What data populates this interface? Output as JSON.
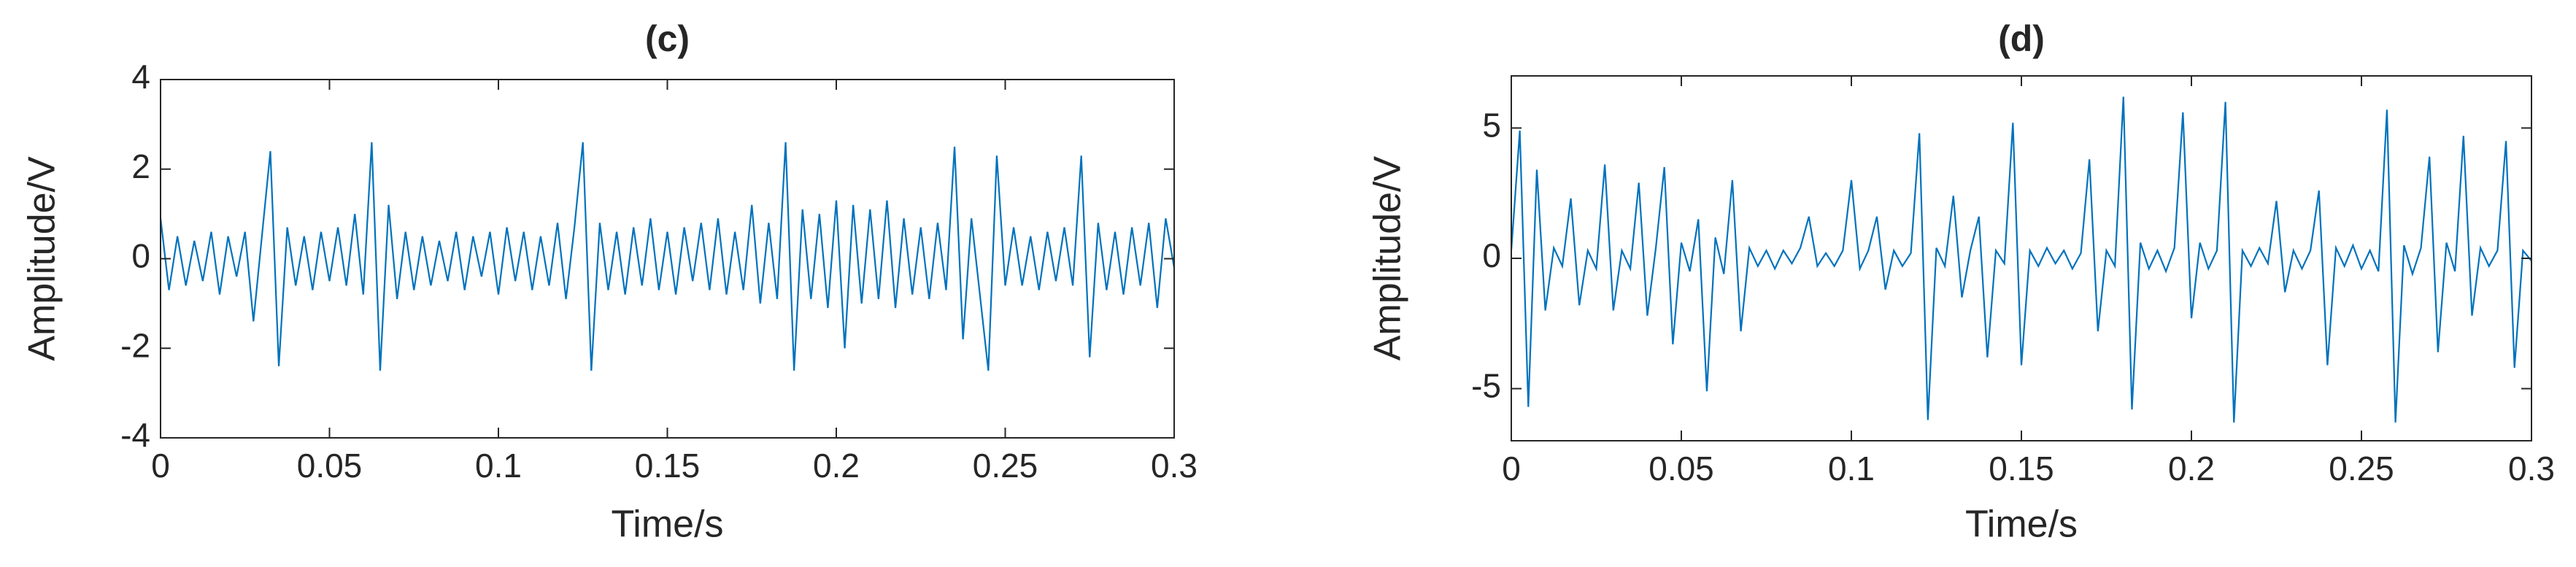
{
  "chart_data": [
    {
      "type": "line",
      "title": "(c)",
      "xlabel": "Time/s",
      "ylabel": "Amplitude/V",
      "color": "#0072bd",
      "xlim": [
        0,
        0.3
      ],
      "ylim": [
        -4,
        4
      ],
      "xticks": [
        0,
        0.05,
        0.1,
        0.15,
        0.2,
        0.25,
        0.3
      ],
      "yticks": [
        -4,
        -2,
        0,
        2,
        4
      ],
      "x": [
        0,
        0.0025,
        0.005,
        0.0075,
        0.01,
        0.0125,
        0.015,
        0.0175,
        0.02,
        0.0225,
        0.025,
        0.0275,
        0.03,
        0.0325,
        0.035,
        0.0375,
        0.04,
        0.0425,
        0.045,
        0.0475,
        0.05,
        0.0525,
        0.055,
        0.0575,
        0.06,
        0.0625,
        0.065,
        0.0675,
        0.07,
        0.0725,
        0.075,
        0.0775,
        0.08,
        0.0825,
        0.085,
        0.0875,
        0.09,
        0.0925,
        0.095,
        0.0975,
        0.1,
        0.1025,
        0.105,
        0.1075,
        0.11,
        0.1125,
        0.115,
        0.1175,
        0.12,
        0.1225,
        0.125,
        0.1275,
        0.13,
        0.1325,
        0.135,
        0.1375,
        0.14,
        0.1425,
        0.145,
        0.1475,
        0.15,
        0.1525,
        0.155,
        0.1575,
        0.16,
        0.1625,
        0.165,
        0.1675,
        0.17,
        0.1725,
        0.175,
        0.1775,
        0.18,
        0.1825,
        0.185,
        0.1875,
        0.19,
        0.1925,
        0.195,
        0.1975,
        0.2,
        0.2025,
        0.205,
        0.2075,
        0.21,
        0.2125,
        0.215,
        0.2175,
        0.22,
        0.2225,
        0.225,
        0.2275,
        0.23,
        0.2325,
        0.235,
        0.2375,
        0.24,
        0.2425,
        0.245,
        0.2475,
        0.25,
        0.2525,
        0.255,
        0.2575,
        0.26,
        0.2625,
        0.265,
        0.2675,
        0.27,
        0.2725,
        0.275,
        0.2775,
        0.28,
        0.2825,
        0.285,
        0.2875,
        0.29,
        0.2925,
        0.295,
        0.2975,
        0.3
      ],
      "values": [
        0.9,
        -0.7,
        0.5,
        -0.6,
        0.4,
        -0.5,
        0.6,
        -0.8,
        0.5,
        -0.4,
        0.6,
        -1.4,
        0.5,
        2.4,
        -2.4,
        0.7,
        -0.6,
        0.5,
        -0.7,
        0.6,
        -0.5,
        0.7,
        -0.6,
        1.0,
        -0.8,
        2.6,
        -2.5,
        1.2,
        -0.9,
        0.6,
        -0.7,
        0.5,
        -0.6,
        0.4,
        -0.5,
        0.6,
        -0.7,
        0.5,
        -0.4,
        0.6,
        -0.8,
        0.7,
        -0.5,
        0.6,
        -0.7,
        0.5,
        -0.6,
        0.8,
        -0.9,
        0.7,
        2.6,
        -2.5,
        0.8,
        -0.7,
        0.6,
        -0.8,
        0.7,
        -0.6,
        0.9,
        -0.7,
        0.6,
        -0.8,
        0.7,
        -0.5,
        0.8,
        -0.7,
        0.9,
        -0.8,
        0.6,
        -0.7,
        1.2,
        -1.0,
        0.8,
        -0.9,
        2.6,
        -2.5,
        1.1,
        -0.9,
        1.0,
        -1.1,
        1.3,
        -2.0,
        1.2,
        -1.0,
        1.1,
        -0.9,
        1.3,
        -1.1,
        0.9,
        -0.8,
        0.7,
        -0.9,
        0.8,
        -0.7,
        2.5,
        -1.8,
        0.9,
        -0.8,
        -2.5,
        2.3,
        -0.6,
        0.7,
        -0.6,
        0.5,
        -0.7,
        0.6,
        -0.5,
        0.7,
        -0.6,
        2.3,
        -2.2,
        0.8,
        -0.7,
        0.6,
        -0.8,
        0.7,
        -0.6,
        0.8,
        -1.1,
        0.9,
        -0.2
      ]
    },
    {
      "type": "line",
      "title": "(d)",
      "xlabel": "Time/s",
      "ylabel": "Amplitude/V",
      "color": "#0072bd",
      "xlim": [
        0,
        0.3
      ],
      "ylim": [
        -7,
        7
      ],
      "xticks": [
        0,
        0.05,
        0.1,
        0.15,
        0.2,
        0.25,
        0.3
      ],
      "yticks": [
        -5,
        0,
        5
      ],
      "x": [
        0,
        0.0025,
        0.005,
        0.0075,
        0.01,
        0.0125,
        0.015,
        0.0175,
        0.02,
        0.0225,
        0.025,
        0.0275,
        0.03,
        0.0325,
        0.035,
        0.0375,
        0.04,
        0.0425,
        0.045,
        0.0475,
        0.05,
        0.0525,
        0.055,
        0.0575,
        0.06,
        0.0625,
        0.065,
        0.0675,
        0.07,
        0.0725,
        0.075,
        0.0775,
        0.08,
        0.0825,
        0.085,
        0.0875,
        0.09,
        0.0925,
        0.095,
        0.0975,
        0.1,
        0.1025,
        0.105,
        0.1075,
        0.11,
        0.1125,
        0.115,
        0.1175,
        0.12,
        0.1225,
        0.125,
        0.1275,
        0.13,
        0.1325,
        0.135,
        0.1375,
        0.14,
        0.1425,
        0.145,
        0.1475,
        0.15,
        0.1525,
        0.155,
        0.1575,
        0.16,
        0.1625,
        0.165,
        0.1675,
        0.17,
        0.1725,
        0.175,
        0.1775,
        0.18,
        0.1825,
        0.185,
        0.1875,
        0.19,
        0.1925,
        0.195,
        0.1975,
        0.2,
        0.2025,
        0.205,
        0.2075,
        0.21,
        0.2125,
        0.215,
        0.2175,
        0.22,
        0.2225,
        0.225,
        0.2275,
        0.23,
        0.2325,
        0.235,
        0.2375,
        0.24,
        0.2425,
        0.245,
        0.2475,
        0.25,
        0.2525,
        0.255,
        0.2575,
        0.26,
        0.2625,
        0.265,
        0.2675,
        0.27,
        0.2725,
        0.275,
        0.2775,
        0.28,
        0.2825,
        0.285,
        0.2875,
        0.29,
        0.2925,
        0.295,
        0.2975,
        0.3
      ],
      "values": [
        0.3,
        4.9,
        -5.7,
        3.4,
        -2.0,
        0.4,
        -0.3,
        2.3,
        -1.8,
        0.3,
        -0.4,
        3.6,
        -2.0,
        0.3,
        -0.4,
        2.9,
        -2.2,
        0.4,
        3.5,
        -3.3,
        0.6,
        -0.5,
        1.5,
        -5.1,
        0.8,
        -0.6,
        3.0,
        -2.8,
        0.4,
        -0.3,
        0.3,
        -0.4,
        0.3,
        -0.2,
        0.4,
        1.6,
        -0.3,
        0.2,
        -0.3,
        0.3,
        3.0,
        -0.4,
        0.3,
        1.6,
        -1.2,
        0.3,
        -0.3,
        0.2,
        4.8,
        -6.2,
        0.4,
        -0.3,
        2.4,
        -1.5,
        0.3,
        1.6,
        -3.8,
        0.3,
        -0.2,
        5.2,
        -4.1,
        0.3,
        -0.3,
        0.4,
        -0.2,
        0.3,
        -0.4,
        0.2,
        3.8,
        -2.8,
        0.3,
        -0.3,
        6.2,
        -5.8,
        0.6,
        -0.4,
        0.3,
        -0.5,
        0.4,
        5.6,
        -2.3,
        0.6,
        -0.4,
        0.3,
        6.0,
        -6.3,
        0.3,
        -0.3,
        0.4,
        -0.2,
        2.2,
        -1.3,
        0.3,
        -0.4,
        0.3,
        2.6,
        -4.1,
        0.4,
        -0.3,
        0.5,
        -0.4,
        0.3,
        -0.5,
        5.7,
        -6.3,
        0.5,
        -0.6,
        0.4,
        3.9,
        -3.6,
        0.6,
        -0.5,
        4.7,
        -2.2,
        0.4,
        -0.3,
        0.3,
        4.5,
        -4.2,
        0.3,
        -0.1
      ]
    }
  ]
}
